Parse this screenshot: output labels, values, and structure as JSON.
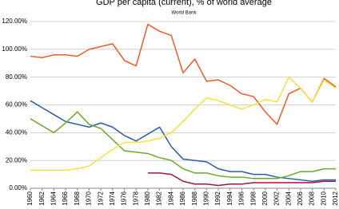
{
  "chart_data": {
    "type": "line",
    "title": "GDP per capita (current), % of world average",
    "subtitle": "World Bank",
    "x": [
      1960,
      1962,
      1964,
      1966,
      1968,
      1970,
      1972,
      1974,
      1976,
      1978,
      1980,
      1982,
      1984,
      1986,
      1988,
      1990,
      1992,
      1994,
      1996,
      1998,
      2000,
      2002,
      2004,
      2006,
      2008,
      2010,
      2012
    ],
    "xlim": [
      1960,
      2012
    ],
    "xticks": [
      1960,
      1962,
      1964,
      1966,
      1968,
      1970,
      1972,
      1974,
      1976,
      1978,
      1980,
      1982,
      1984,
      1986,
      1988,
      1990,
      1992,
      1994,
      1996,
      1998,
      2000,
      2002,
      2004,
      2006,
      2008,
      2010,
      2012
    ],
    "ylim": [
      0,
      120
    ],
    "yticks": [
      {
        "value": 0,
        "label": "0.00%"
      },
      {
        "value": 20,
        "label": "20.00%"
      },
      {
        "value": 40,
        "label": "40.00%"
      },
      {
        "value": 60,
        "label": "60.00%"
      },
      {
        "value": 80,
        "label": "80.00%"
      },
      {
        "value": 100,
        "label": "100.00%"
      },
      {
        "value": 120,
        "label": "120.00%"
      }
    ],
    "grid": true,
    "series": [
      {
        "color": "#f05a28",
        "values": [
          95,
          94,
          96,
          96,
          95,
          100,
          102,
          104,
          92,
          88,
          118,
          113,
          110,
          83,
          93,
          77,
          78,
          74,
          68,
          66,
          55,
          46,
          68,
          72,
          62,
          79,
          73
        ]
      },
      {
        "color": "#2a5caa",
        "values": [
          63,
          58,
          53,
          48,
          46,
          44,
          47,
          44,
          38,
          34,
          39,
          44,
          30,
          21,
          20,
          19,
          14,
          12,
          12,
          10,
          10,
          8,
          7,
          6,
          5,
          6,
          6
        ]
      },
      {
        "color": "#6aaa2a",
        "values": [
          50,
          45,
          40,
          47,
          55,
          46,
          43,
          35,
          27,
          26,
          25,
          22,
          20,
          14,
          11,
          11,
          9,
          8,
          8,
          7,
          7,
          7,
          9,
          12,
          12,
          14,
          14
        ]
      },
      {
        "color": "#f5e33a",
        "values": [
          13,
          13,
          13,
          13,
          14,
          16,
          22,
          28,
          33,
          33,
          34,
          36,
          40,
          48,
          57,
          65,
          63,
          60,
          57,
          60,
          64,
          62,
          80,
          72,
          62,
          78,
          72
        ]
      },
      {
        "color": "#a0143c",
        "values": [
          null,
          null,
          null,
          null,
          null,
          null,
          null,
          null,
          null,
          null,
          11,
          11,
          10,
          5,
          3,
          3,
          2,
          3,
          3,
          4,
          4,
          4,
          4,
          4,
          4,
          5,
          5
        ]
      }
    ]
  }
}
